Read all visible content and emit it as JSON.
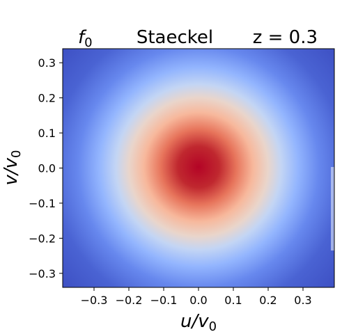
{
  "chart_data": {
    "type": "heatmap",
    "title_left": "f",
    "title_left_sub": "0",
    "title_center": "Staeckel",
    "title_right": "z = 0.3",
    "xlabel": "u/v",
    "xlabel_sub": "0",
    "ylabel": "v/v",
    "ylabel_sub": "0",
    "xlim": [
      -0.39,
      0.39
    ],
    "ylim": [
      -0.34,
      0.34
    ],
    "xticks": [
      -0.3,
      -0.2,
      -0.1,
      0.0,
      0.1,
      0.2,
      0.3
    ],
    "xtick_labels": [
      "−0.3",
      "−0.2",
      "−0.1",
      "0.0",
      "0.1",
      "0.2",
      "0.3"
    ],
    "yticks": [
      0.3,
      0.2,
      0.1,
      0.0,
      -0.1,
      -0.2,
      -0.3
    ],
    "ytick_labels": [
      "0.3",
      "0.2",
      "0.1",
      "0.0",
      "−0.1",
      "−0.2",
      "−0.3"
    ],
    "colormap": "coolwarm",
    "peak_center": [
      0.0,
      0.0
    ],
    "dispersion_u": 0.1,
    "dispersion_v": 0.095,
    "colors": {
      "low": "#3b4cc0",
      "mid": "#dddddd",
      "high": "#b40426"
    }
  }
}
